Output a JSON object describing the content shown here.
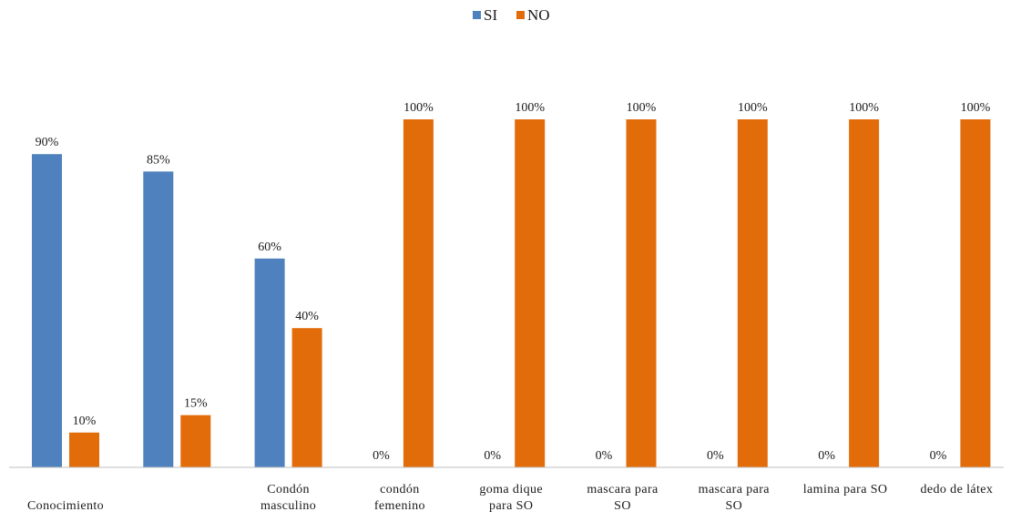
{
  "chart_data": {
    "type": "bar",
    "categories": [
      [
        "",
        "Conocimiento"
      ],
      [
        "",
        ""
      ],
      [
        "Condón",
        "masculino"
      ],
      [
        "condón",
        "femenino"
      ],
      [
        "goma dique",
        "para SO"
      ],
      [
        "mascara para",
        "SO"
      ],
      [
        "mascara para",
        "SO"
      ],
      [
        "lamina para SO",
        ""
      ],
      [
        "dedo de látex",
        ""
      ]
    ],
    "series": [
      {
        "name": "SI",
        "color": "#4E81BD",
        "values": [
          90,
          85,
          60,
          0,
          0,
          0,
          0,
          0,
          0
        ]
      },
      {
        "name": "NO",
        "color": "#E36C0A",
        "values": [
          10,
          15,
          40,
          100,
          100,
          100,
          100,
          100,
          100
        ]
      }
    ],
    "value_suffix": "%",
    "ylim": [
      0,
      100
    ],
    "grid": false,
    "legend_position": "top-center",
    "title": "",
    "xlabel": "",
    "ylabel": ""
  }
}
